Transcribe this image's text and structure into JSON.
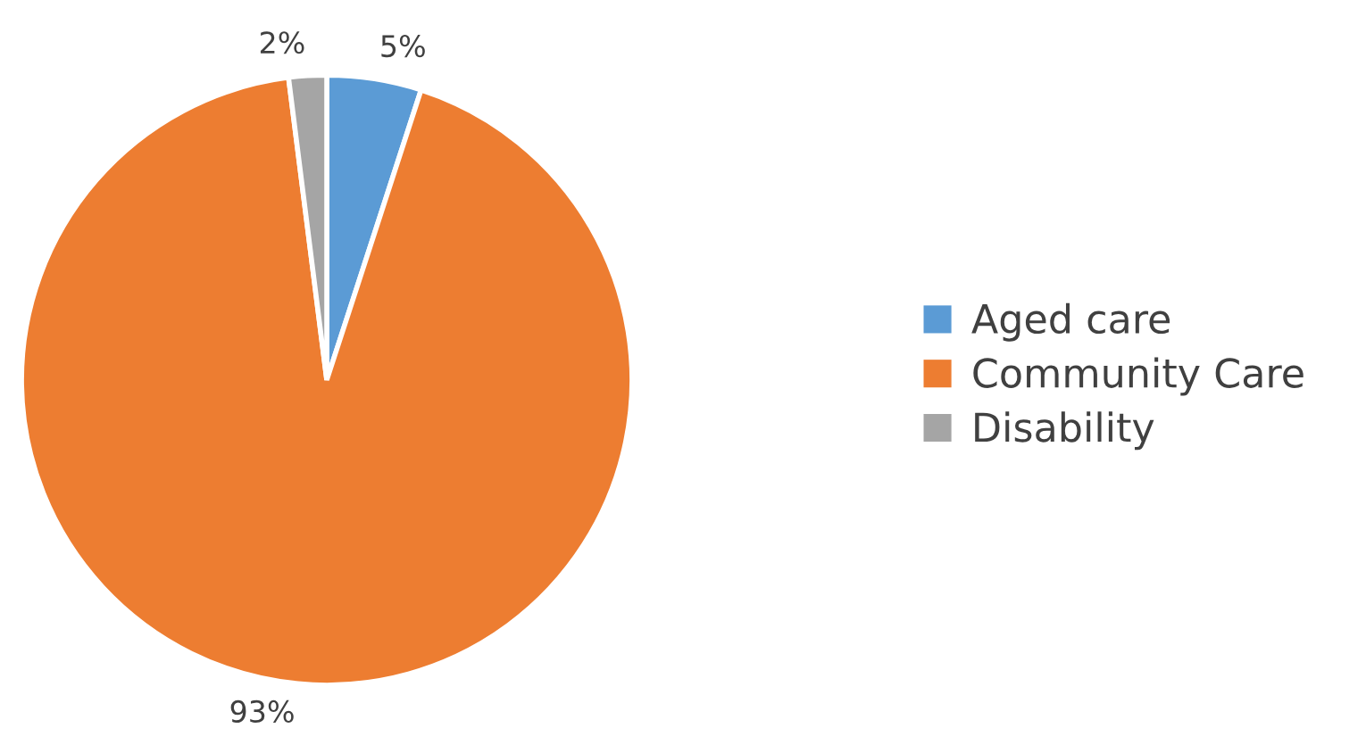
{
  "chart_data": {
    "type": "pie",
    "categories": [
      "Aged care",
      "Community Care",
      "Disability"
    ],
    "values": [
      5,
      93,
      2
    ],
    "colors": [
      "#5b9bd5",
      "#ed7d31",
      "#a5a5a5"
    ],
    "value_labels": [
      "5%",
      "93%",
      "2%"
    ],
    "legend": "right"
  }
}
